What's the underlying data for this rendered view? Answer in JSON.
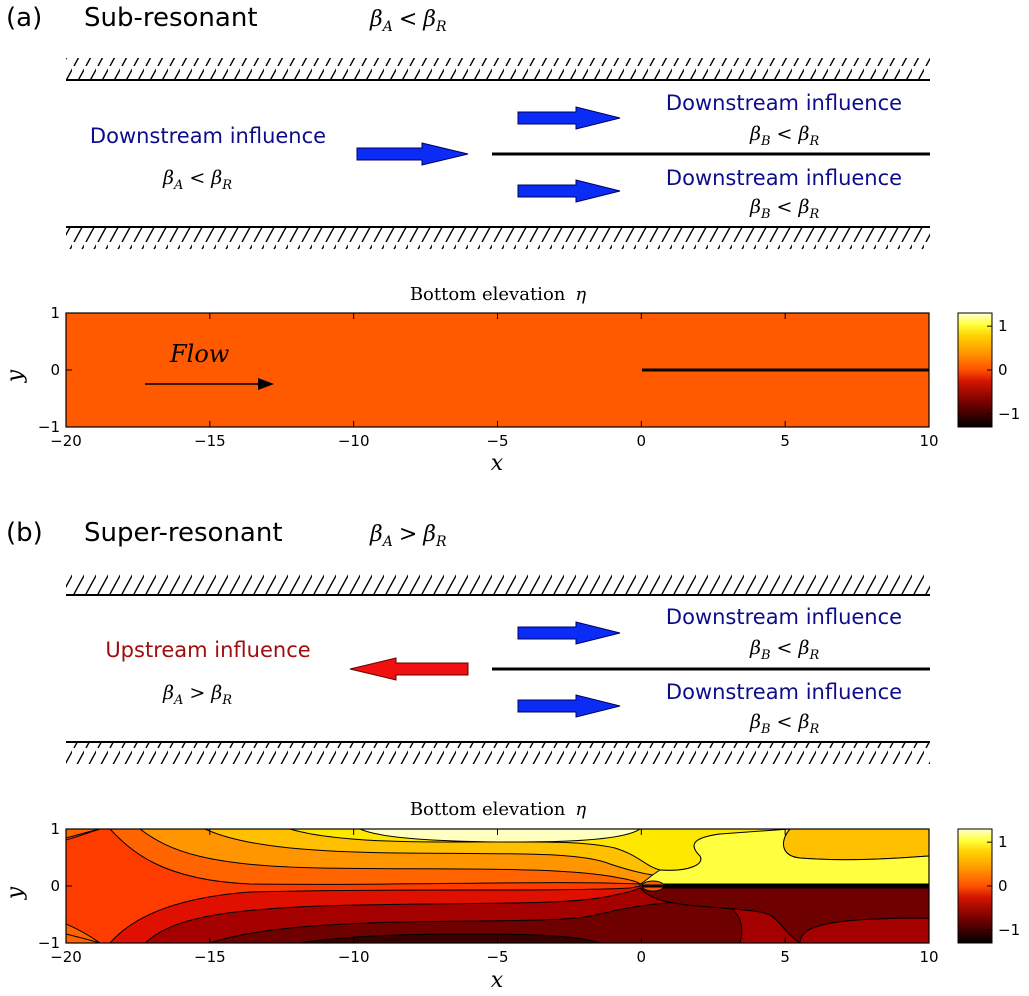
{
  "panels": [
    {
      "letter": "(a)",
      "regime": "Sub-resonant",
      "regime_math": {
        "lhs": "β",
        "lhs_sub": "A",
        "op": "<",
        "rhs": "β",
        "rhs_sub": "R"
      },
      "left": {
        "label": "Downstream influence",
        "condition": {
          "lhs": "β",
          "lhs_sub": "A",
          "op": "<",
          "rhs": "β",
          "rhs_sub": "R"
        },
        "arrow_direction": "right",
        "color": "#0d0d8c",
        "arrow_color": "#0a2cf5"
      },
      "right_top": {
        "label": "Downstream influence",
        "condition": {
          "lhs": "β",
          "lhs_sub": "B",
          "op": "<",
          "rhs": "β",
          "rhs_sub": "R"
        },
        "color": "#0d0d8c",
        "arrow_color": "#0a2cf5"
      },
      "right_bottom": {
        "label": "Downstream influence",
        "condition": {
          "lhs": "β",
          "lhs_sub": "B",
          "op": "<",
          "rhs": "β",
          "rhs_sub": "R"
        },
        "color": "#0d0d8c",
        "arrow_color": "#0a2cf5"
      },
      "plot": {
        "title": "Bottom elevation",
        "title_symbol": "η",
        "x_label": "x",
        "y_label": "y",
        "x_ticks": [
          "−20",
          "−15",
          "−10",
          "−5",
          "0",
          "5",
          "10"
        ],
        "x_tick_values": [
          -20,
          -15,
          -10,
          -5,
          0,
          5,
          10
        ],
        "y_ticks": [
          "1",
          "0",
          "−1"
        ],
        "y_tick_values": [
          1,
          0,
          -1
        ],
        "x_range": [
          -20,
          10
        ],
        "y_range": [
          -1,
          1
        ],
        "annotation": "Flow",
        "fill_color": "#ff5a00",
        "colorbar_ticks": [
          "1",
          "0",
          "−1"
        ]
      }
    },
    {
      "letter": "(b)",
      "regime": "Super-resonant",
      "regime_math": {
        "lhs": "β",
        "lhs_sub": "A",
        "op": ">",
        "rhs": "β",
        "rhs_sub": "R"
      },
      "left": {
        "label": "Upstream influence",
        "condition": {
          "lhs": "β",
          "lhs_sub": "A",
          "op": ">",
          "rhs": "β",
          "rhs_sub": "R"
        },
        "arrow_direction": "left",
        "color": "#a00d0d",
        "arrow_color": "#f01010"
      },
      "right_top": {
        "label": "Downstream influence",
        "condition": {
          "lhs": "β",
          "lhs_sub": "B",
          "op": "<",
          "rhs": "β",
          "rhs_sub": "R"
        },
        "color": "#0d0d8c",
        "arrow_color": "#0a2cf5"
      },
      "right_bottom": {
        "label": "Downstream influence",
        "condition": {
          "lhs": "β",
          "lhs_sub": "B",
          "op": "<",
          "rhs": "β",
          "rhs_sub": "R"
        },
        "color": "#0d0d8c",
        "arrow_color": "#0a2cf5"
      },
      "plot": {
        "title": "Bottom elevation",
        "title_symbol": "η",
        "x_label": "x",
        "y_label": "y",
        "x_ticks": [
          "−20",
          "−15",
          "−10",
          "−5",
          "0",
          "5",
          "10"
        ],
        "x_tick_values": [
          -20,
          -15,
          -10,
          -5,
          0,
          5,
          10
        ],
        "y_ticks": [
          "1",
          "0",
          "−1"
        ],
        "y_tick_values": [
          1,
          0,
          -1
        ],
        "x_range": [
          -20,
          10
        ],
        "y_range": [
          -1,
          1
        ],
        "colorbar_ticks": [
          "1",
          "0",
          "−1"
        ]
      }
    }
  ],
  "colormap": [
    "#000000",
    "#5a0000",
    "#a50000",
    "#e01000",
    "#ff3c00",
    "#ff6400",
    "#ff9600",
    "#ffc000",
    "#ffe800",
    "#ffff40",
    "#ffffc8"
  ]
}
